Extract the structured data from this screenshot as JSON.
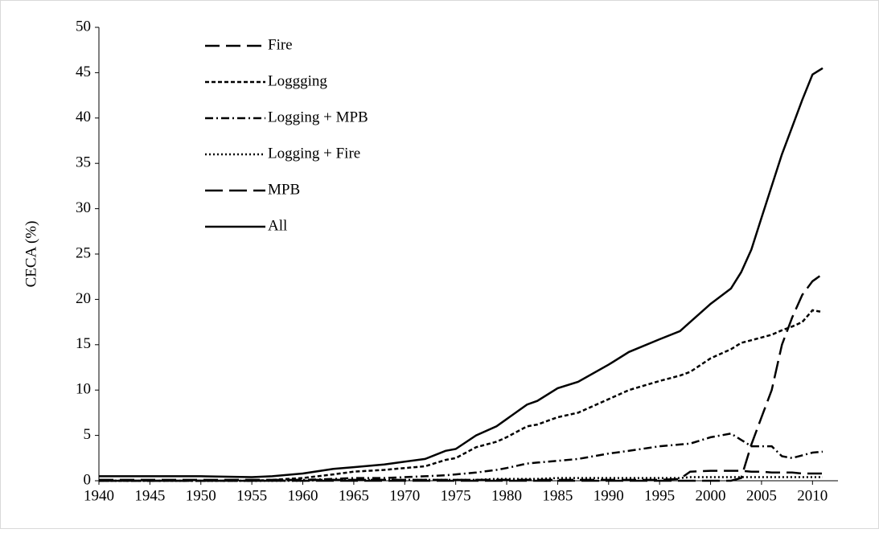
{
  "chart_data": {
    "type": "line",
    "y_label": "CECA (%)",
    "x": [
      1940,
      1945,
      1950,
      1955,
      1957,
      1960,
      1963,
      1965,
      1968,
      1970,
      1972,
      1974,
      1975,
      1977,
      1979,
      1980,
      1982,
      1983,
      1985,
      1987,
      1990,
      1992,
      1995,
      1997,
      1998,
      2000,
      2002,
      2003,
      2004,
      2005,
      2006,
      2007,
      2008,
      2009,
      2010,
      2011
    ],
    "xlim": [
      1940,
      2012.5
    ],
    "xticks": [
      1940,
      1945,
      1950,
      1955,
      1960,
      1965,
      1970,
      1975,
      1980,
      1985,
      1990,
      1995,
      2000,
      2005,
      2010
    ],
    "ylim": [
      0,
      50
    ],
    "yticks": [
      0,
      5,
      10,
      15,
      20,
      25,
      30,
      35,
      40,
      45,
      50
    ],
    "series": [
      {
        "name": "Fire",
        "color": "#000000",
        "dash": "18,8",
        "values": [
          0.1,
          0.1,
          0.1,
          0.1,
          0.1,
          0.1,
          0.1,
          0.1,
          0.1,
          0.1,
          0.1,
          0.1,
          0.1,
          0.1,
          0.1,
          0.1,
          0.1,
          0.1,
          0.1,
          0.1,
          0.1,
          0.1,
          0.1,
          0.2,
          1.0,
          1.1,
          1.1,
          1.1,
          1.0,
          1.0,
          0.9,
          0.9,
          0.9,
          0.8,
          0.8,
          0.8
        ]
      },
      {
        "name": "Loggging",
        "color": "#000000",
        "dash": "5,3",
        "values": [
          0,
          0,
          0,
          0,
          0.1,
          0.3,
          0.7,
          1.0,
          1.2,
          1.4,
          1.6,
          2.3,
          2.5,
          3.7,
          4.3,
          4.8,
          6.0,
          6.2,
          7.0,
          7.5,
          9.0,
          10.0,
          11.0,
          11.6,
          12.0,
          13.5,
          14.5,
          15.2,
          15.5,
          15.8,
          16.1,
          16.6,
          17.0,
          17.5,
          18.8,
          18.6
        ]
      },
      {
        "name": "Logging + MPB",
        "color": "#000000",
        "dash": "10,4,2,4",
        "values": [
          0,
          0,
          0,
          0,
          0,
          0.1,
          0.2,
          0.3,
          0.3,
          0.4,
          0.5,
          0.6,
          0.7,
          0.9,
          1.2,
          1.4,
          1.9,
          2.0,
          2.2,
          2.4,
          3.0,
          3.3,
          3.8,
          4.0,
          4.1,
          4.8,
          5.2,
          4.5,
          3.8,
          3.8,
          3.8,
          2.7,
          2.5,
          2.8,
          3.1,
          3.2
        ]
      },
      {
        "name": "Logging + Fire",
        "color": "#000000",
        "dash": "2,3",
        "values": [
          0,
          0,
          0,
          0,
          0,
          0,
          0.1,
          0.1,
          0.1,
          0.1,
          0.1,
          0.1,
          0.1,
          0.1,
          0.2,
          0.2,
          0.2,
          0.2,
          0.3,
          0.3,
          0.3,
          0.3,
          0.3,
          0.3,
          0.4,
          0.4,
          0.4,
          0.4,
          0.4,
          0.4,
          0.4,
          0.4,
          0.4,
          0.4,
          0.4,
          0.4
        ]
      },
      {
        "name": "MPB",
        "color": "#000000",
        "dash": "22,8",
        "values": [
          0,
          0,
          0,
          0,
          0,
          0,
          0,
          0,
          0,
          0,
          0,
          0,
          0,
          0,
          0,
          0,
          0,
          0,
          0,
          0,
          0,
          0,
          0,
          0,
          0,
          0,
          0,
          0.3,
          4.0,
          7.0,
          10.0,
          15.0,
          18.0,
          20.5,
          22.0,
          22.8
        ]
      },
      {
        "name": "All",
        "color": "#000000",
        "dash": "none",
        "values": [
          0.5,
          0.5,
          0.5,
          0.4,
          0.5,
          0.8,
          1.3,
          1.5,
          1.8,
          2.1,
          2.4,
          3.3,
          3.5,
          5.0,
          6.0,
          6.8,
          8.4,
          8.8,
          10.2,
          10.9,
          12.8,
          14.2,
          15.6,
          16.5,
          17.5,
          19.5,
          21.2,
          23.0,
          25.5,
          29.0,
          32.5,
          36.0,
          39.0,
          42.0,
          44.8,
          45.5
        ]
      }
    ]
  }
}
